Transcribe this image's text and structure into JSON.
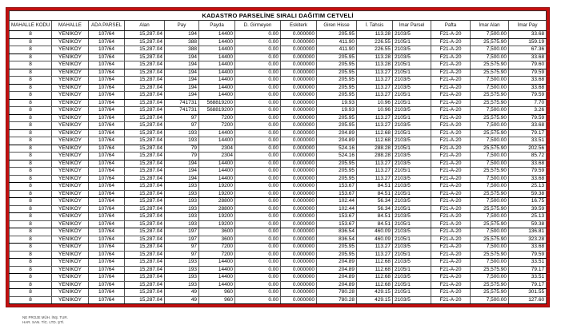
{
  "title": "KADASTRO PARSELİNE SIRALI DAĞITIM CETVELİ",
  "colors": {
    "frame": "#c40f0f",
    "grid": "#555555",
    "text": "#000000"
  },
  "columns": [
    {
      "label": "MAHALLE KODU",
      "align": "center"
    },
    {
      "label": "MAHALLE",
      "align": "center"
    },
    {
      "label": "ADA PARSEL",
      "align": "center"
    },
    {
      "label": "Alan",
      "align": "right"
    },
    {
      "label": "Pay",
      "align": "right"
    },
    {
      "label": "Payda",
      "align": "right"
    },
    {
      "label": "D. Girmeyen",
      "align": "right"
    },
    {
      "label": "Eskiterk",
      "align": "right"
    },
    {
      "label": "Giren Hisse",
      "align": "right"
    },
    {
      "label": "İ. Tahsis",
      "align": "right"
    },
    {
      "label": "İmar Parsel",
      "align": "left"
    },
    {
      "label": "Pafta",
      "align": "center"
    },
    {
      "label": "İmar Alan",
      "align": "right"
    },
    {
      "label": "İmar Pay",
      "align": "right"
    }
  ],
  "rows": [
    [
      "8",
      "YENİKÖY",
      "107/64",
      "15,287.04",
      "194",
      "14400",
      "0.00",
      "0.000000",
      "205.95",
      "113.28",
      "2103/5",
      "F21-A-20",
      "7,500.00",
      "33.68"
    ],
    [
      "8",
      "YENİKÖY",
      "107/64",
      "15,287.04",
      "388",
      "14400",
      "0.00",
      "0.000000",
      "411.90",
      "226.55",
      "2105/1",
      "F21-A-20",
      "25,575.90",
      "159.19"
    ],
    [
      "8",
      "YENİKÖY",
      "107/64",
      "15,287.04",
      "388",
      "14400",
      "0.00",
      "0.000000",
      "411.90",
      "226.55",
      "2103/5",
      "F21-A-20",
      "7,500.00",
      "67.36"
    ],
    [
      "8",
      "YENİKÖY",
      "107/64",
      "15,287.04",
      "194",
      "14400",
      "0.00",
      "0.000000",
      "205.95",
      "113.28",
      "2103/5",
      "F21-A-20",
      "7,500.00",
      "33.68"
    ],
    [
      "8",
      "YENİKÖY",
      "107/64",
      "15,287.04",
      "194",
      "14400",
      "0.00",
      "0.000000",
      "205.95",
      "113.28",
      "2105/1",
      "F21-A-20",
      "25,575.90",
      "79.60"
    ],
    [
      "8",
      "YENİKÖY",
      "107/64",
      "15,287.04",
      "194",
      "14400",
      "0.00",
      "0.000000",
      "205.95",
      "113.27",
      "2105/1",
      "F21-A-20",
      "25,575.90",
      "79.59"
    ],
    [
      "8",
      "YENİKÖY",
      "107/64",
      "15,287.04",
      "194",
      "14400",
      "0.00",
      "0.000000",
      "205.95",
      "113.27",
      "2103/5",
      "F21-A-20",
      "7,500.00",
      "33.68"
    ],
    [
      "8",
      "YENİKÖY",
      "107/64",
      "15,287.04",
      "194",
      "14400",
      "0.00",
      "0.000000",
      "205.95",
      "113.27",
      "2103/5",
      "F21-A-20",
      "7,500.00",
      "33.68"
    ],
    [
      "8",
      "YENİKÖY",
      "107/64",
      "15,287.04",
      "194",
      "14400",
      "0.00",
      "0.000000",
      "205.95",
      "113.27",
      "2105/1",
      "F21-A-20",
      "25,575.90",
      "79.59"
    ],
    [
      "8",
      "YENİKÖY",
      "107/64",
      "15,287.04",
      "741731",
      "568819200",
      "0.00",
      "0.000000",
      "19.93",
      "10.96",
      "2105/1",
      "F21-A-20",
      "25,575.90",
      "7.70"
    ],
    [
      "8",
      "YENİKÖY",
      "107/64",
      "15,287.04",
      "741731",
      "568819200",
      "0.00",
      "0.000000",
      "19.93",
      "10.96",
      "2103/5",
      "F21-A-20",
      "7,500.00",
      "3.26"
    ],
    [
      "8",
      "YENİKÖY",
      "107/64",
      "15,287.04",
      "97",
      "7200",
      "0.00",
      "0.000000",
      "205.95",
      "113.27",
      "2105/1",
      "F21-A-20",
      "25,575.90",
      "79.59"
    ],
    [
      "8",
      "YENİKÖY",
      "107/64",
      "15,287.04",
      "97",
      "7200",
      "0.00",
      "0.000000",
      "205.95",
      "113.27",
      "2103/5",
      "F21-A-20",
      "7,500.00",
      "33.68"
    ],
    [
      "8",
      "YENİKÖY",
      "107/64",
      "15,287.04",
      "193",
      "14400",
      "0.00",
      "0.000000",
      "204.89",
      "112.68",
      "2105/1",
      "F21-A-20",
      "25,575.90",
      "79.17"
    ],
    [
      "8",
      "YENİKÖY",
      "107/64",
      "15,287.04",
      "193",
      "14400",
      "0.00",
      "0.000000",
      "204.89",
      "112.68",
      "2103/5",
      "F21-A-20",
      "7,500.00",
      "33.51"
    ],
    [
      "8",
      "YENİKÖY",
      "107/64",
      "15,287.04",
      "79",
      "2304",
      "0.00",
      "0.000000",
      "524.16",
      "288.28",
      "2105/1",
      "F21-A-20",
      "25,575.90",
      "202.56"
    ],
    [
      "8",
      "YENİKÖY",
      "107/64",
      "15,287.04",
      "79",
      "2304",
      "0.00",
      "0.000000",
      "524.16",
      "288.28",
      "2103/5",
      "F21-A-20",
      "7,500.00",
      "85.72"
    ],
    [
      "8",
      "YENİKÖY",
      "107/64",
      "15,287.04",
      "194",
      "14400",
      "0.00",
      "0.000000",
      "205.95",
      "113.27",
      "2103/5",
      "F21-A-20",
      "7,500.00",
      "33.68"
    ],
    [
      "8",
      "YENİKÖY",
      "107/64",
      "15,287.04",
      "194",
      "14400",
      "0.00",
      "0.000000",
      "205.95",
      "113.27",
      "2105/1",
      "F21-A-20",
      "25,575.90",
      "79.59"
    ],
    [
      "8",
      "YENİKÖY",
      "107/64",
      "15,287.04",
      "194",
      "14400",
      "0.00",
      "0.000000",
      "205.95",
      "113.27",
      "2103/5",
      "F21-A-20",
      "7,500.00",
      "33.68"
    ],
    [
      "8",
      "YENİKÖY",
      "107/64",
      "15,287.04",
      "193",
      "19200",
      "0.00",
      "0.000000",
      "153.67",
      "84.51",
      "2103/5",
      "F21-A-20",
      "7,500.00",
      "25.13"
    ],
    [
      "8",
      "YENİKÖY",
      "107/64",
      "15,287.04",
      "193",
      "19200",
      "0.00",
      "0.000000",
      "153.67",
      "84.51",
      "2105/1",
      "F21-A-20",
      "25,575.90",
      "59.38"
    ],
    [
      "8",
      "YENİKÖY",
      "107/64",
      "15,287.04",
      "193",
      "28800",
      "0.00",
      "0.000000",
      "102.44",
      "56.34",
      "2103/5",
      "F21-A-20",
      "7,500.00",
      "16.75"
    ],
    [
      "8",
      "YENİKÖY",
      "107/64",
      "15,287.04",
      "193",
      "28800",
      "0.00",
      "0.000000",
      "102.44",
      "56.34",
      "2105/1",
      "F21-A-20",
      "25,575.90",
      "39.59"
    ],
    [
      "8",
      "YENİKÖY",
      "107/64",
      "15,287.04",
      "193",
      "19200",
      "0.00",
      "0.000000",
      "153.67",
      "84.51",
      "2103/5",
      "F21-A-20",
      "7,500.00",
      "25.13"
    ],
    [
      "8",
      "YENİKÖY",
      "107/64",
      "15,287.04",
      "193",
      "19200",
      "0.00",
      "0.000000",
      "153.67",
      "84.51",
      "2105/1",
      "F21-A-20",
      "25,575.90",
      "59.38"
    ],
    [
      "8",
      "YENİKÖY",
      "107/64",
      "15,287.04",
      "197",
      "3600",
      "0.00",
      "0.000000",
      "836.54",
      "460.09",
      "2103/5",
      "F21-A-20",
      "7,500.00",
      "136.81"
    ],
    [
      "8",
      "YENİKÖY",
      "107/64",
      "15,287.04",
      "197",
      "3600",
      "0.00",
      "0.000000",
      "836.54",
      "460.09",
      "2105/1",
      "F21-A-20",
      "25,575.90",
      "323.28"
    ],
    [
      "8",
      "YENİKÖY",
      "107/64",
      "15,287.04",
      "97",
      "7200",
      "0.00",
      "0.000000",
      "205.95",
      "113.27",
      "2103/5",
      "F21-A-20",
      "7,500.00",
      "33.68"
    ],
    [
      "8",
      "YENİKÖY",
      "107/64",
      "15,287.04",
      "97",
      "7200",
      "0.00",
      "0.000000",
      "205.95",
      "113.27",
      "2105/1",
      "F21-A-20",
      "25,575.90",
      "79.59"
    ],
    [
      "8",
      "YENİKÖY",
      "107/64",
      "15,287.04",
      "193",
      "14400",
      "0.00",
      "0.000000",
      "204.89",
      "112.68",
      "2103/5",
      "F21-A-20",
      "7,500.00",
      "33.51"
    ],
    [
      "8",
      "YENİKÖY",
      "107/64",
      "15,287.04",
      "193",
      "14400",
      "0.00",
      "0.000000",
      "204.89",
      "112.68",
      "2105/1",
      "F21-A-20",
      "25,575.90",
      "79.17"
    ],
    [
      "8",
      "YENİKÖY",
      "107/64",
      "15,287.04",
      "193",
      "14400",
      "0.00",
      "0.000000",
      "204.89",
      "112.68",
      "2103/5",
      "F21-A-20",
      "7,500.00",
      "33.51"
    ],
    [
      "8",
      "YENİKÖY",
      "107/64",
      "15,287.04",
      "193",
      "14400",
      "0.00",
      "0.000000",
      "204.89",
      "112.68",
      "2105/1",
      "F21-A-20",
      "25,575.90",
      "79.17"
    ],
    [
      "8",
      "YENİKÖY",
      "107/64",
      "15,287.04",
      "49",
      "960",
      "0.00",
      "0.000000",
      "780.28",
      "429.15",
      "2105/1",
      "F21-A-20",
      "25,575.90",
      "301.55"
    ],
    [
      "8",
      "YENİKÖY",
      "107/64",
      "15,287.04",
      "49",
      "960",
      "0.00",
      "0.000000",
      "780.28",
      "429.15",
      "2103/5",
      "F21-A-20",
      "7,500.00",
      "127.60"
    ]
  ],
  "group_end_rows": [
    1,
    3,
    5,
    7,
    9,
    11,
    13,
    15,
    17,
    20,
    22,
    24,
    26,
    28,
    30,
    32,
    34,
    36
  ],
  "footer": {
    "line1": "NE PROJE MÜH. İNŞ. TUR.",
    "line2": "HAR. SAN. TİC. LTD. ŞTİ."
  }
}
